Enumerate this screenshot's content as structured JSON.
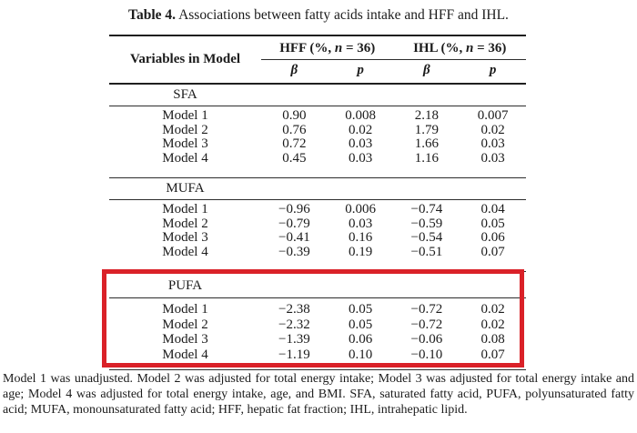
{
  "title": {
    "label": "Table 4.",
    "text": "Associations between fatty acids intake and HFF and IHL."
  },
  "table": {
    "variables_header": "Variables in Model",
    "groups": [
      {
        "pre": "HFF (%, ",
        "n": "n",
        "post": " = 36)"
      },
      {
        "pre": "IHL (%, ",
        "n": "n",
        "post": " = 36)"
      }
    ],
    "subheaders": {
      "beta": "β",
      "p": "p"
    },
    "sections": [
      {
        "name": "SFA",
        "rows": [
          {
            "label": "Model 1",
            "hff_beta": "0.90",
            "hff_p": "0.008",
            "ihl_beta": "2.18",
            "ihl_p": "0.007"
          },
          {
            "label": "Model 2",
            "hff_beta": "0.76",
            "hff_p": "0.02",
            "ihl_beta": "1.79",
            "ihl_p": "0.02"
          },
          {
            "label": "Model 3",
            "hff_beta": "0.72",
            "hff_p": "0.03",
            "ihl_beta": "1.66",
            "ihl_p": "0.03"
          },
          {
            "label": "Model 4",
            "hff_beta": "0.45",
            "hff_p": "0.03",
            "ihl_beta": "1.16",
            "ihl_p": "0.03"
          }
        ]
      },
      {
        "name": "MUFA",
        "rows": [
          {
            "label": "Model 1",
            "hff_beta": "−0.96",
            "hff_p": "0.006",
            "ihl_beta": "−0.74",
            "ihl_p": "0.04"
          },
          {
            "label": "Model 2",
            "hff_beta": "−0.79",
            "hff_p": "0.03",
            "ihl_beta": "−0.59",
            "ihl_p": "0.05"
          },
          {
            "label": "Model 3",
            "hff_beta": "−0.41",
            "hff_p": "0.16",
            "ihl_beta": "−0.54",
            "ihl_p": "0.06"
          },
          {
            "label": "Model 4",
            "hff_beta": "−0.39",
            "hff_p": "0.19",
            "ihl_beta": "−0.51",
            "ihl_p": "0.07"
          }
        ]
      },
      {
        "name": "PUFA",
        "highlighted": true,
        "rows": [
          {
            "label": "Model 1",
            "hff_beta": "−2.38",
            "hff_p": "0.05",
            "ihl_beta": "−0.72",
            "ihl_p": "0.02"
          },
          {
            "label": "Model 2",
            "hff_beta": "−2.32",
            "hff_p": "0.05",
            "ihl_beta": "−0.72",
            "ihl_p": "0.02"
          },
          {
            "label": "Model 3",
            "hff_beta": "−1.39",
            "hff_p": "0.06",
            "ihl_beta": "−0.06",
            "ihl_p": "0.08"
          },
          {
            "label": "Model 4",
            "hff_beta": "−1.19",
            "hff_p": "0.10",
            "ihl_beta": "−0.10",
            "ihl_p": "0.07"
          }
        ]
      }
    ]
  },
  "highlight": {
    "color": "#da2128",
    "target": "PUFA"
  },
  "footnote": "Model 1 was unadjusted.  Model 2 was adjusted for total energy intake; Model 3 was adjusted for total energy intake and age; Model 4 was adjusted for total energy intake, age, and BMI. SFA, saturated fatty acid, PUFA, polyunsaturated fatty acid; MUFA, monounsaturated fatty acid; HFF, hepatic fat fraction; IHL, intrahepatic lipid."
}
